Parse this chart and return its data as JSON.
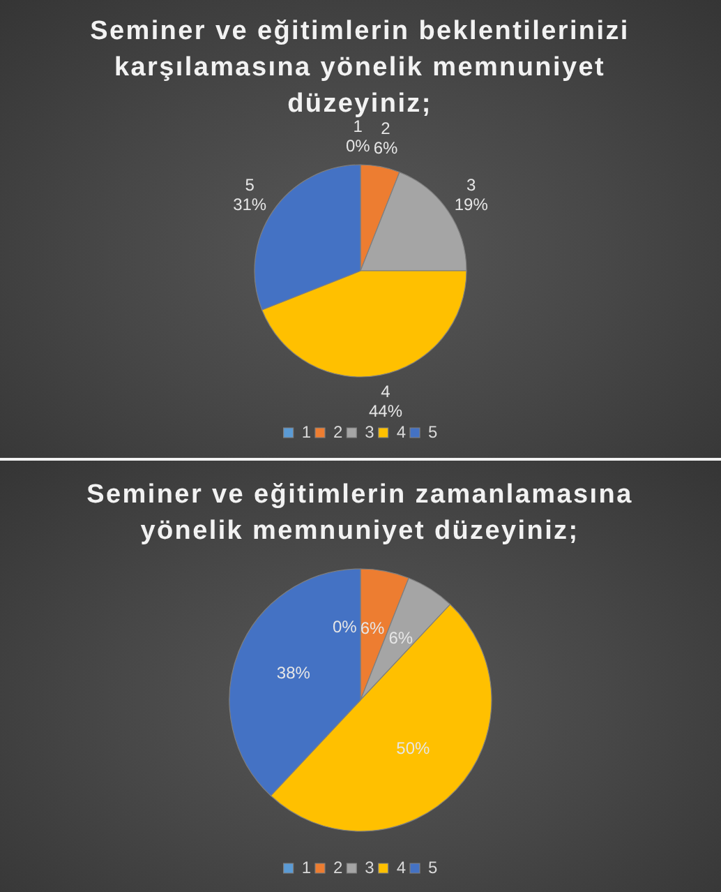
{
  "chart_data": [
    {
      "type": "pie",
      "title": "Seminer ve eğitimlerin beklentilerinizi karşılamasına yönelik memnuniyet düzeyiniz;",
      "categories": [
        "1",
        "2",
        "3",
        "4",
        "5"
      ],
      "values": [
        0,
        6,
        19,
        44,
        31
      ],
      "colors": [
        "#5b9bd5",
        "#ed7d31",
        "#a5a5a5",
        "#ffc000",
        "#4472c4"
      ],
      "value_labels": [
        "1\n0%",
        "2\n6%",
        "3\n19%",
        "4\n44%",
        "5\n31%"
      ],
      "legend": "bottom"
    },
    {
      "type": "pie",
      "title": "Seminer ve eğitimlerin zamanlamasına yönelik memnuniyet düzeyiniz;",
      "categories": [
        "1",
        "2",
        "3",
        "4",
        "5"
      ],
      "values": [
        0,
        6,
        6,
        50,
        38
      ],
      "colors": [
        "#5b9bd5",
        "#ed7d31",
        "#a5a5a5",
        "#ffc000",
        "#4472c4"
      ],
      "value_labels": [
        "0%",
        "6%",
        "6%",
        "50%",
        "38%"
      ],
      "legend": "bottom"
    }
  ]
}
